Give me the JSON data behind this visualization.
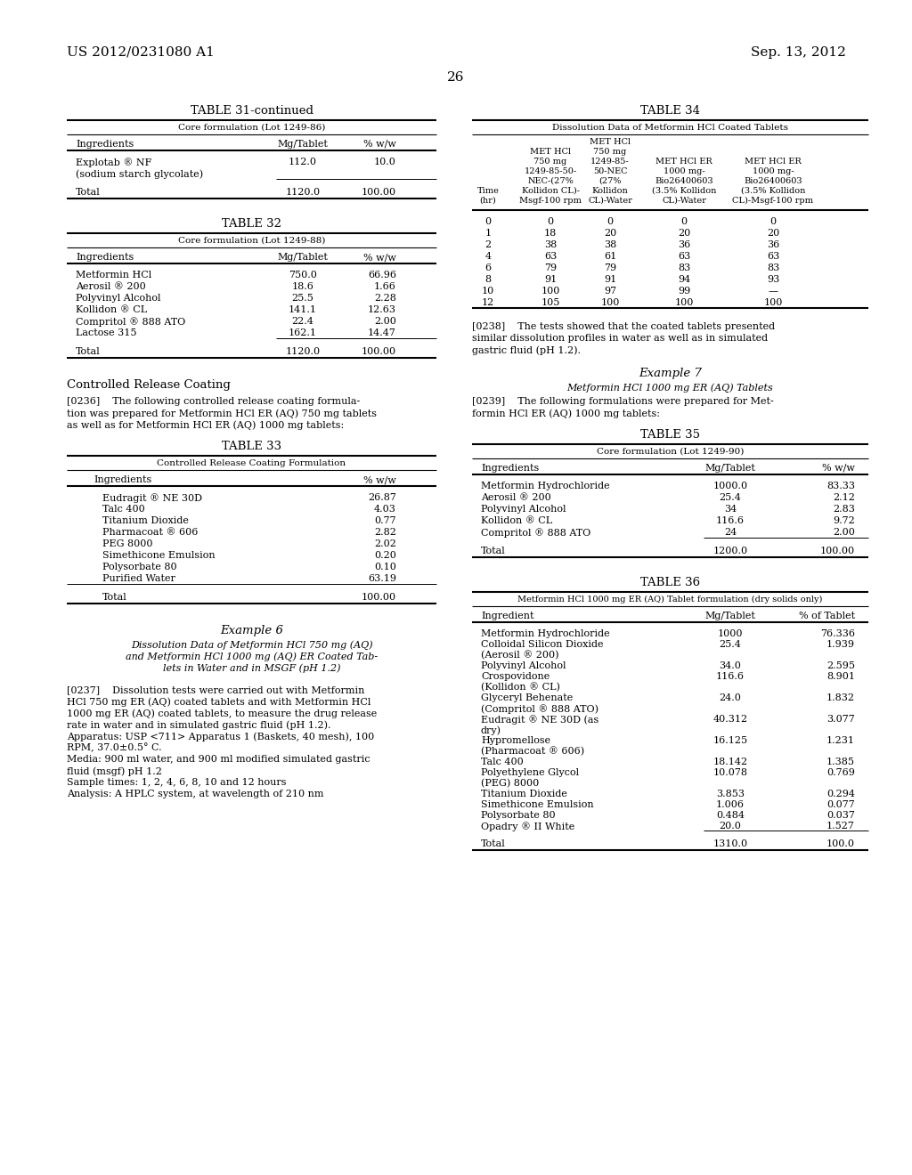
{
  "header_left": "US 2012/0231080 A1",
  "header_right": "Sep. 13, 2012",
  "page_number": "26",
  "bg_color": "#ffffff",
  "text_color": "#000000",
  "table31_title": "TABLE 31-continued",
  "table31_subtitle": "Core formulation (Lot 1249-86)",
  "table31_rows": [
    [
      "Explotab ® NF",
      "112.0",
      "10.0"
    ],
    [
      "(sodium starch glycolate)",
      "",
      ""
    ]
  ],
  "table31_total": [
    "Total",
    "1120.0",
    "100.00"
  ],
  "table32_title": "TABLE 32",
  "table32_subtitle": "Core formulation (Lot 1249-88)",
  "table32_rows": [
    [
      "Metformin HCl",
      "750.0",
      "66.96"
    ],
    [
      "Aerosil ® 200",
      "18.6",
      "1.66"
    ],
    [
      "Polyvinyl Alcohol",
      "25.5",
      "2.28"
    ],
    [
      "Kollidon ® CL",
      "141.1",
      "12.63"
    ],
    [
      "Compritol ® 888 ATO",
      "22.4",
      "2.00"
    ],
    [
      "Lactose 315",
      "162.1",
      "14.47"
    ]
  ],
  "table32_total": [
    "Total",
    "1120.0",
    "100.00"
  ],
  "controlled_release_heading": "Controlled Release Coating",
  "table33_title": "TABLE 33",
  "table33_subtitle": "Controlled Release Coating Formulation",
  "table33_rows": [
    [
      "Eudragit ® NE 30D",
      "26.87"
    ],
    [
      "Talc 400",
      "4.03"
    ],
    [
      "Titanium Dioxide",
      "0.77"
    ],
    [
      "Pharmacoat ® 606",
      "2.82"
    ],
    [
      "PEG 8000",
      "2.02"
    ],
    [
      "Simethicone Emulsion",
      "0.20"
    ],
    [
      "Polysorbate 80",
      "0.10"
    ],
    [
      "Purified Water",
      "63.19"
    ]
  ],
  "table33_total": [
    "Total",
    "100.00"
  ],
  "example6_title": "Example 6",
  "example6_subtitle_lines": [
    "Dissolution Data of Metformin HCl 750 mg (AQ)",
    "and Metformin HCl 1000 mg (AQ) ER Coated Tab-",
    "lets in Water and in MSGF (pH 1.2)"
  ],
  "para0237_lines": [
    "[0237]    Dissolution tests were carried out with Metformin",
    "HCl 750 mg ER (AQ) coated tablets and with Metformin HCl",
    "1000 mg ER (AQ) coated tablets, to measure the drug release",
    "rate in water and in simulated gastric fluid (pH 1.2).",
    "Apparatus: USP <711> Apparatus 1 (Baskets, 40 mesh), 100",
    "RPM, 37.0±0.5° C.",
    "Media: 900 ml water, and 900 ml modified simulated gastric",
    "fluid (msgf) pH 1.2",
    "Sample times: 1, 2, 4, 6, 8, 10 and 12 hours",
    "Analysis: A HPLC system, at wavelength of 210 nm"
  ],
  "table34_title": "TABLE 34",
  "table34_subtitle": "Dissolution Data of Metformin HCl Coated Tablets",
  "table34_col_headers": [
    [
      "Time",
      "(hr)"
    ],
    [
      "MET HCl",
      "750 mg",
      "1249-85-50-",
      "NEC-(27%",
      "Kollidon CL)-",
      "Msgf-100 rpm"
    ],
    [
      "MET HCl",
      "750 mg",
      "1249-85-",
      "50-NEC",
      "(27%",
      "Kollidon",
      "CL)-Water"
    ],
    [
      "MET HCl ER",
      "1000 mg-",
      "Bio26400603",
      "(3.5% Kollidon",
      "CL)-Water"
    ],
    [
      "MET HCl ER",
      "1000 mg-",
      "Bio26400603",
      "(3.5% Kollidon",
      "CL)-Msgf-100 rpm"
    ]
  ],
  "table34_rows": [
    [
      "0",
      "0",
      "0",
      "0",
      "0"
    ],
    [
      "1",
      "18",
      "20",
      "20",
      "20"
    ],
    [
      "2",
      "38",
      "38",
      "36",
      "36"
    ],
    [
      "4",
      "63",
      "61",
      "63",
      "63"
    ],
    [
      "6",
      "79",
      "79",
      "83",
      "83"
    ],
    [
      "8",
      "91",
      "91",
      "94",
      "93"
    ],
    [
      "10",
      "100",
      "97",
      "99",
      "—"
    ],
    [
      "12",
      "105",
      "100",
      "100",
      "100"
    ]
  ],
  "para0238_lines": [
    "[0238]    The tests showed that the coated tablets presented",
    "similar dissolution profiles in water as well as in simulated",
    "gastric fluid (pH 1.2)."
  ],
  "example7_title": "Example 7",
  "example7_subtitle": "Metformin HCl 1000 mg ER (AQ) Tablets",
  "para0239_lines": [
    "[0239]    The following formulations were prepared for Met-",
    "formin HCl ER (AQ) 1000 mg tablets:"
  ],
  "table35_title": "TABLE 35",
  "table35_subtitle": "Core formulation (Lot 1249-90)",
  "table35_rows": [
    [
      "Metformin Hydrochloride",
      "1000.0",
      "83.33"
    ],
    [
      "Aerosil ® 200",
      "25.4",
      "2.12"
    ],
    [
      "Polyvinyl Alcohol",
      "34",
      "2.83"
    ],
    [
      "Kollidon ® CL",
      "116.6",
      "9.72"
    ],
    [
      "Compritol ® 888 ATO",
      "24",
      "2.00"
    ]
  ],
  "table35_total": [
    "Total",
    "1200.0",
    "100.00"
  ],
  "table36_title": "TABLE 36",
  "table36_subtitle": "Metformin HCl 1000 mg ER (AQ) Tablet formulation (dry solids only)",
  "table36_rows": [
    [
      "Metformin Hydrochloride",
      "1000",
      "76.336"
    ],
    [
      "Colloidal Silicon Dioxide",
      "25.4",
      "1.939"
    ],
    [
      "(Aerosil ® 200)",
      "",
      ""
    ],
    [
      "Polyvinyl Alcohol",
      "34.0",
      "2.595"
    ],
    [
      "Crospovidone",
      "116.6",
      "8.901"
    ],
    [
      "(Kollidon ® CL)",
      "",
      ""
    ],
    [
      "Glyceryl Behenate",
      "24.0",
      "1.832"
    ],
    [
      "(Compritol ® 888 ATO)",
      "",
      ""
    ],
    [
      "Eudragit ® NE 30D (as",
      "40.312",
      "3.077"
    ],
    [
      "dry)",
      "",
      ""
    ],
    [
      "Hypromellose",
      "16.125",
      "1.231"
    ],
    [
      "(Pharmacoat ® 606)",
      "",
      ""
    ],
    [
      "Talc 400",
      "18.142",
      "1.385"
    ],
    [
      "Polyethylene Glycol",
      "10.078",
      "0.769"
    ],
    [
      "(PEG) 8000",
      "",
      ""
    ],
    [
      "Titanium Dioxide",
      "3.853",
      "0.294"
    ],
    [
      "Simethicone Emulsion",
      "1.006",
      "0.077"
    ],
    [
      "Polysorbate 80",
      "0.484",
      "0.037"
    ],
    [
      "Opadry ® II White",
      "20.0",
      "1.527"
    ]
  ],
  "table36_total": [
    "Total",
    "1310.0",
    "100.0"
  ]
}
